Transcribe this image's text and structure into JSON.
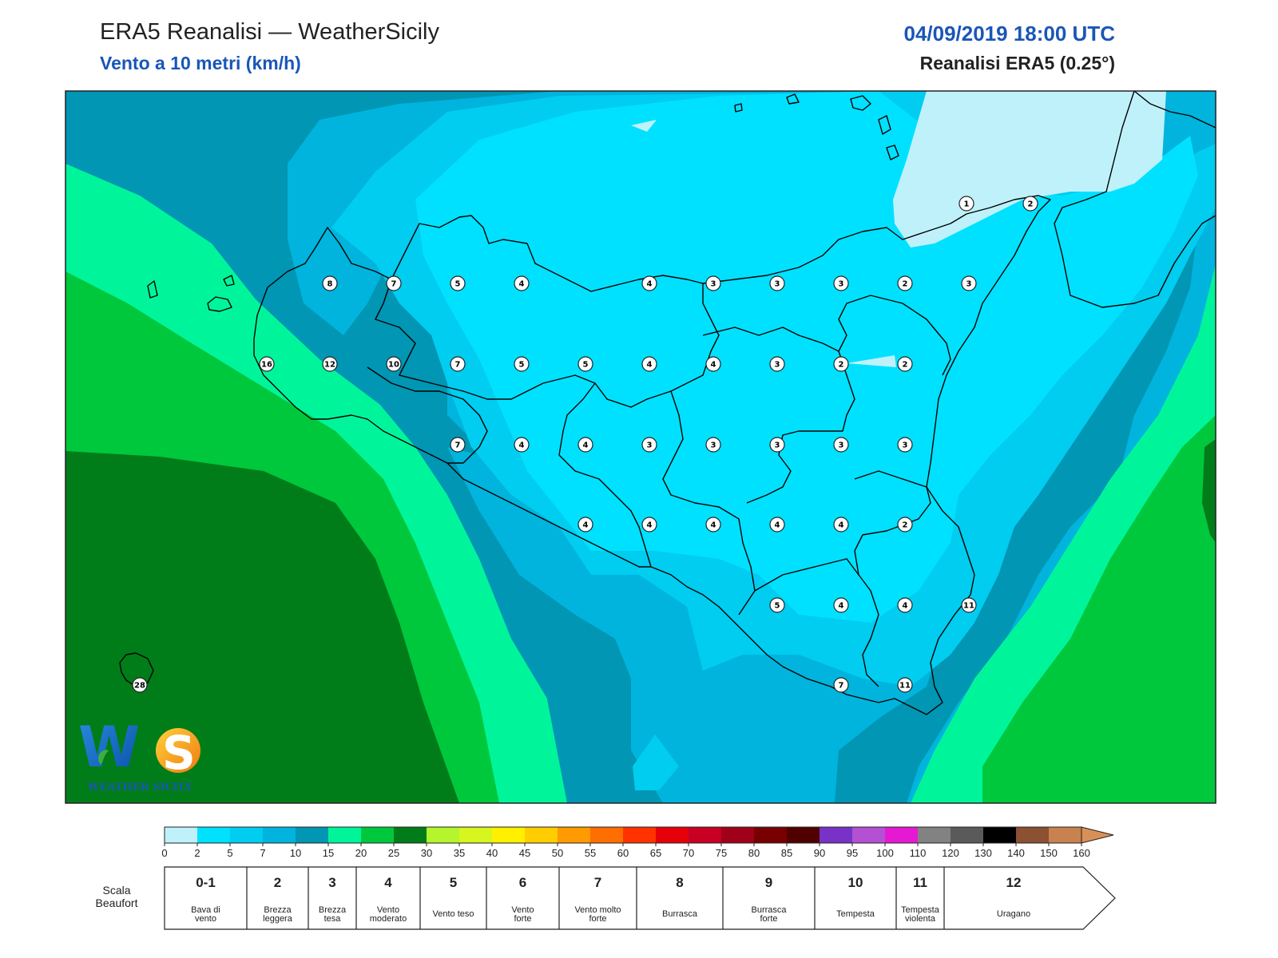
{
  "header": {
    "title": "ERA5 Reanalisi — WeatherSicily",
    "subtitle": "Vento a 10 metri (km/h)",
    "datetime": "04/09/2019 18:00 UTC",
    "source": "Reanalisi ERA5 (0.25°)"
  },
  "logo": {
    "text": "WEATHER SICILY"
  },
  "stations": [
    {
      "v": "1"
    },
    {
      "v": "2"
    },
    {
      "v": "8"
    },
    {
      "v": "7"
    },
    {
      "v": "5"
    },
    {
      "v": "4"
    },
    {
      "v": "4"
    },
    {
      "v": "3"
    },
    {
      "v": "3"
    },
    {
      "v": "3"
    },
    {
      "v": "2"
    },
    {
      "v": "3"
    },
    {
      "v": "16"
    },
    {
      "v": "12"
    },
    {
      "v": "10"
    },
    {
      "v": "7"
    },
    {
      "v": "5"
    },
    {
      "v": "5"
    },
    {
      "v": "4"
    },
    {
      "v": "4"
    },
    {
      "v": "3"
    },
    {
      "v": "2"
    },
    {
      "v": "2"
    },
    {
      "v": "7"
    },
    {
      "v": "4"
    },
    {
      "v": "4"
    },
    {
      "v": "3"
    },
    {
      "v": "3"
    },
    {
      "v": "3"
    },
    {
      "v": "3"
    },
    {
      "v": "3"
    },
    {
      "v": "4"
    },
    {
      "v": "4"
    },
    {
      "v": "4"
    },
    {
      "v": "4"
    },
    {
      "v": "4"
    },
    {
      "v": "2"
    },
    {
      "v": "5"
    },
    {
      "v": "4"
    },
    {
      "v": "4"
    },
    {
      "v": "11"
    },
    {
      "v": "7"
    },
    {
      "v": "11"
    },
    {
      "v": "28"
    }
  ],
  "colorbar": {
    "ticks": [
      "0",
      "2",
      "5",
      "7",
      "10",
      "15",
      "20",
      "25",
      "30",
      "35",
      "40",
      "45",
      "50",
      "55",
      "60",
      "65",
      "70",
      "75",
      "80",
      "85",
      "90",
      "95",
      "100",
      "110",
      "120",
      "130",
      "140",
      "150",
      "160"
    ],
    "colors": [
      "#bff1fb",
      "#00e1ff",
      "#00cdf0",
      "#00b4dd",
      "#0096b4",
      "#00f59b",
      "#00c83c",
      "#007d19",
      "#b4f52d",
      "#d7f51e",
      "#fff000",
      "#ffcd00",
      "#ff9b00",
      "#ff6e00",
      "#ff3200",
      "#e6000a",
      "#c80023",
      "#a00019",
      "#780000",
      "#500000",
      "#7832c8",
      "#b450d2",
      "#e619d2",
      "#828282",
      "#5a5a5a",
      "#000000",
      "#8c5032",
      "#c88250"
    ]
  },
  "beaufort": {
    "label": "Scala Beaufort",
    "classes": [
      {
        "num": "0-1",
        "name1": "Bava di",
        "name2": "vento"
      },
      {
        "num": "2",
        "name1": "Brezza",
        "name2": "leggera"
      },
      {
        "num": "3",
        "name1": "Brezza",
        "name2": "tesa"
      },
      {
        "num": "4",
        "name1": "Vento",
        "name2": "moderato"
      },
      {
        "num": "5",
        "name1": "Vento teso",
        "name2": ""
      },
      {
        "num": "6",
        "name1": "Vento",
        "name2": "forte"
      },
      {
        "num": "7",
        "name1": "Vento molto",
        "name2": "forte"
      },
      {
        "num": "8",
        "name1": "Burrasca",
        "name2": ""
      },
      {
        "num": "9",
        "name1": "Burrasca",
        "name2": "forte"
      },
      {
        "num": "10",
        "name1": "Tempesta",
        "name2": ""
      },
      {
        "num": "11",
        "name1": "Tempesta",
        "name2": "violenta"
      },
      {
        "num": "12",
        "name1": "Uragano",
        "name2": ""
      }
    ]
  }
}
